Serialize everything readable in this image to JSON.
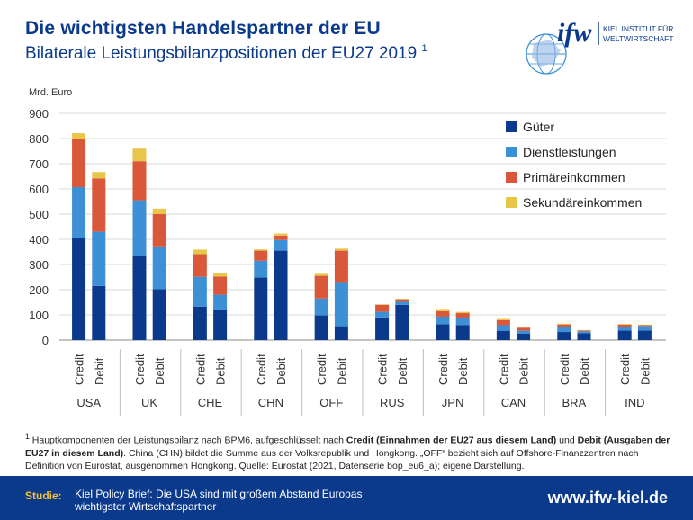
{
  "header": {
    "title": "Die wichtigsten Handelspartner der EU",
    "subtitle": "Bilaterale Leistungsbilanzpositionen der EU27 2019",
    "subtitle_sup": "1"
  },
  "logo": {
    "mark": "ifw",
    "line1": "KIEL INSTITUT FÜR",
    "line2": "WELTWIRTSCHAFT"
  },
  "chart_data": {
    "type": "bar",
    "stacked": true,
    "unit_label": "Mrd. Euro",
    "ylim": [
      0,
      900
    ],
    "yticks": [
      0,
      100,
      200,
      300,
      400,
      500,
      600,
      700,
      800,
      900
    ],
    "grid": true,
    "legend_position": "top-right",
    "groups": [
      "USA",
      "UK",
      "CHE",
      "CHN",
      "OFF",
      "RUS",
      "JPN",
      "CAN",
      "BRA",
      "IND"
    ],
    "bar_labels": [
      "Credit",
      "Debit"
    ],
    "series": [
      {
        "name": "Güter",
        "color": "#0b3a8c",
        "credit": [
          407,
          333,
          133,
          248,
          98,
          90,
          63,
          37,
          32,
          38
        ],
        "debit": [
          215,
          202,
          118,
          355,
          55,
          140,
          60,
          25,
          27,
          38
        ]
      },
      {
        "name": "Dienstleistungen",
        "color": "#3d8fd6",
        "credit": [
          200,
          222,
          118,
          67,
          67,
          22,
          30,
          22,
          18,
          15
        ],
        "debit": [
          215,
          170,
          62,
          42,
          172,
          12,
          27,
          12,
          8,
          18
        ]
      },
      {
        "name": "Primäreinkommen",
        "color": "#d9583a",
        "credit": [
          192,
          155,
          90,
          40,
          90,
          28,
          22,
          20,
          12,
          8
        ],
        "debit": [
          212,
          128,
          72,
          18,
          128,
          10,
          20,
          12,
          3,
          3
        ]
      },
      {
        "name": "Sekundäreinkommen",
        "color": "#e8c64a",
        "credit": [
          22,
          50,
          18,
          5,
          8,
          2,
          5,
          5,
          3,
          3
        ],
        "debit": [
          25,
          22,
          15,
          8,
          8,
          2,
          5,
          3,
          2,
          2
        ]
      }
    ]
  },
  "footnote": {
    "sup": "1",
    "part1": " Hauptkomponenten der Leistungsbilanz nach BPM6, aufgeschlüsselt nach ",
    "bold1": "Credit (Einnahmen der EU27 aus diesem Land)",
    "part2": " und ",
    "bold2": "Debit (Ausgaben der EU27 in diesem Land)",
    "part3": ". China (CHN) bildet die Summe aus der Volksrepublik und Hongkong. „OFF“ bezieht sich auf Offshore-Finanzzentren nach Definition von Eurostat, ausgenommen Hongkong. Quelle: Eurostat (2021, Datenserie bop_eu6_a); eigene Darstellung."
  },
  "footer": {
    "label": "Studie:",
    "text": "Kiel Policy Brief: Die USA sind mit großem Abstand Europas wichtigster Wirtschaftspartner",
    "url": "www.ifw-kiel.de"
  }
}
